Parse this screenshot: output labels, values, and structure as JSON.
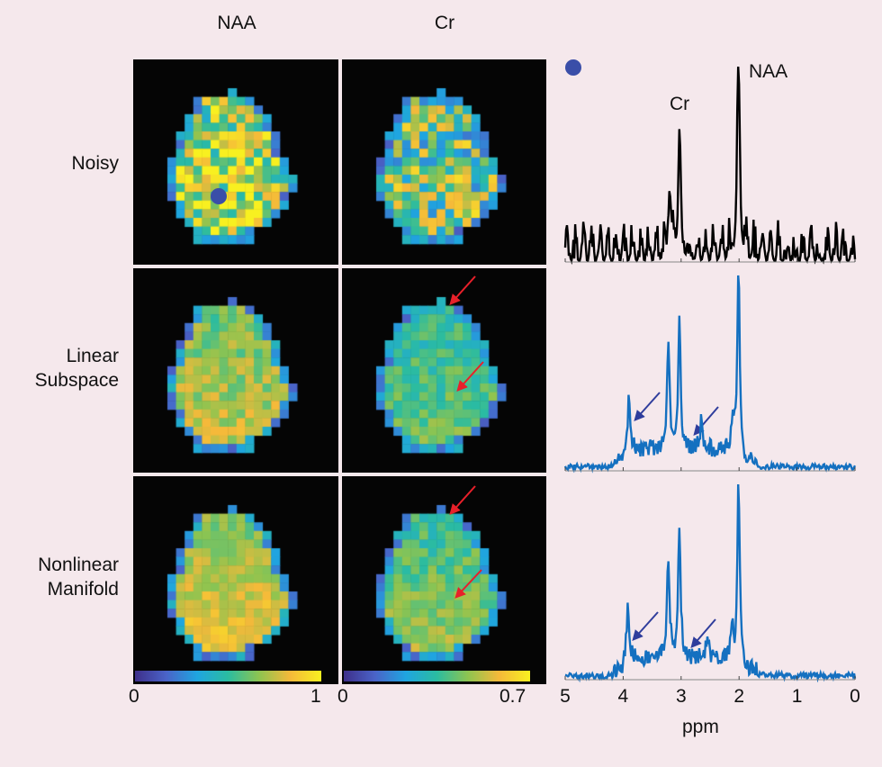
{
  "columns": [
    "NAA",
    "Cr"
  ],
  "rows": [
    {
      "label_lines": [
        "Noisy"
      ]
    },
    {
      "label_lines": [
        "Linear",
        "Subspace"
      ]
    },
    {
      "label_lines": [
        "Nonlinear",
        "Manifold"
      ]
    }
  ],
  "maps": {
    "NAA": [
      {
        "method": "Noisy",
        "base": 0.78,
        "noise": 0.35,
        "gradient": 0.1
      },
      {
        "method": "Linear Subspace",
        "base": 0.68,
        "noise": 0.12,
        "gradient": 0.15
      },
      {
        "method": "Nonlinear Manifold",
        "base": 0.74,
        "noise": 0.1,
        "gradient": 0.25
      }
    ],
    "Cr": [
      {
        "method": "Noisy",
        "base": 0.6,
        "noise": 0.35,
        "gradient": 0.1
      },
      {
        "method": "Linear Subspace",
        "base": 0.55,
        "noise": 0.1,
        "gradient": 0.15
      },
      {
        "method": "Nonlinear Manifold",
        "base": 0.6,
        "noise": 0.1,
        "gradient": 0.2
      }
    ]
  },
  "colorbars": [
    {
      "min_label": "0",
      "max_label": "1"
    },
    {
      "min_label": "0",
      "max_label": "0.7"
    }
  ],
  "voxel_marker_color": "#3a4ea8",
  "annotation_arrow_colors": {
    "maps": "#e8202a",
    "spectra": "#2f3d9c"
  },
  "chart_data": {
    "type": "line",
    "xlabel": "ppm",
    "x_ticks": [
      "5",
      "4",
      "3",
      "2",
      "1",
      "0"
    ],
    "xlim": [
      5,
      0
    ],
    "series": [
      {
        "name": "Noisy",
        "color": "#000000",
        "peaks": [
          {
            "ppm": 2.01,
            "height": 1.0,
            "label": "NAA"
          },
          {
            "ppm": 3.03,
            "height": 0.58,
            "label": "Cr"
          },
          {
            "ppm": 3.2,
            "height": 0.35
          }
        ],
        "noise": 0.22
      },
      {
        "name": "Linear Subspace",
        "color": "#1470c0",
        "peaks": [
          {
            "ppm": 2.01,
            "height": 1.0
          },
          {
            "ppm": 3.03,
            "height": 0.68
          },
          {
            "ppm": 3.22,
            "height": 0.53
          },
          {
            "ppm": 3.9,
            "height": 0.27
          },
          {
            "ppm": 2.65,
            "height": 0.16
          },
          {
            "ppm": 2.1,
            "height": 0.2
          }
        ],
        "noise": 0.03
      },
      {
        "name": "Nonlinear Manifold",
        "color": "#1470c0",
        "peaks": [
          {
            "ppm": 2.01,
            "height": 1.0
          },
          {
            "ppm": 3.03,
            "height": 0.68
          },
          {
            "ppm": 3.22,
            "height": 0.53
          },
          {
            "ppm": 3.92,
            "height": 0.25
          },
          {
            "ppm": 2.55,
            "height": 0.11
          },
          {
            "ppm": 2.12,
            "height": 0.16
          }
        ],
        "noise": 0.03
      }
    ],
    "peak_labels": [
      "Cr",
      "NAA"
    ]
  }
}
